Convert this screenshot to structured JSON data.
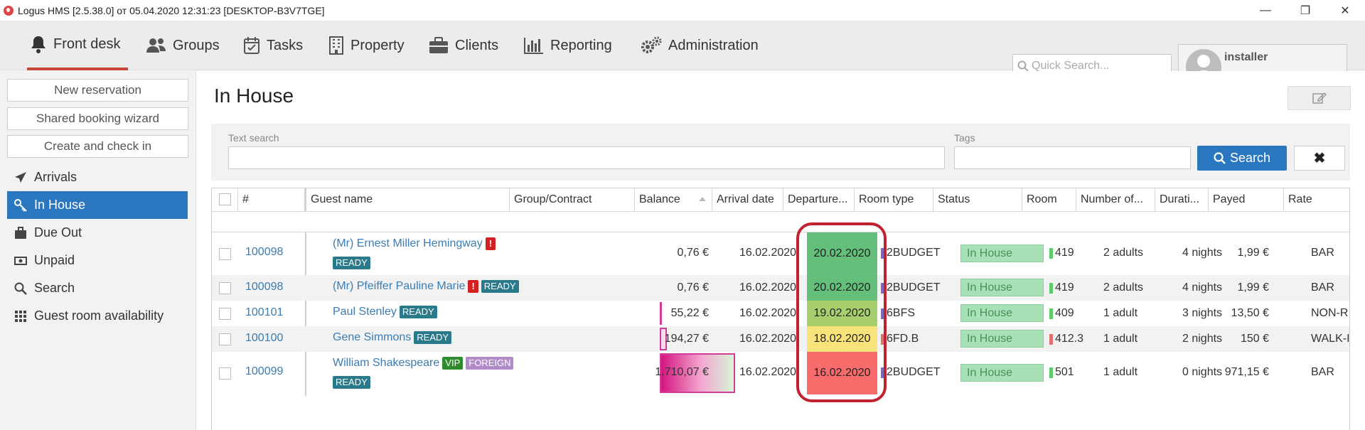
{
  "window": {
    "title": "Logus HMS [2.5.38.0] от 05.04.2020 12:31:23 [DESKTOP-B3V7TGE]",
    "min": "—",
    "max": "❐",
    "close": "✕"
  },
  "menu": {
    "items": [
      {
        "label": "Front desk"
      },
      {
        "label": "Groups"
      },
      {
        "label": "Tasks"
      },
      {
        "label": "Property"
      },
      {
        "label": "Clients"
      },
      {
        "label": "Reporting"
      },
      {
        "label": "Administration"
      }
    ],
    "active": "Front desk",
    "quick_search_placeholder": "Quick Search...",
    "user": "installer"
  },
  "sidebar": {
    "buttons": [
      {
        "label": "New reservation"
      },
      {
        "label": "Shared booking wizard"
      },
      {
        "label": "Create and check in"
      }
    ],
    "items": [
      {
        "label": "Arrivals",
        "icon": "plane-icon"
      },
      {
        "label": "In House",
        "icon": "key-icon"
      },
      {
        "label": "Due Out",
        "icon": "suitcase-icon"
      },
      {
        "label": "Unpaid",
        "icon": "money-icon"
      },
      {
        "label": "Search",
        "icon": "search-icon"
      },
      {
        "label": "Guest room availability",
        "icon": "grid-icon"
      }
    ],
    "active": "In House"
  },
  "page": {
    "title": "In House"
  },
  "filters": {
    "text_search_label": "Text search",
    "tags_label": "Tags",
    "search_button": "Search",
    "clear_button": "✖"
  },
  "grid": {
    "columns": [
      "#",
      "Guest name",
      "Group/Contract",
      "Balance",
      "Arrival date",
      "Departure...",
      "Room type",
      "Status",
      "Room",
      "Number of...",
      "Durati...",
      "Payed",
      "Rate"
    ],
    "rows": [
      {
        "num": "100098",
        "name": "(Mr) Ernest Miller Hemingway",
        "tags": [
          "!",
          "READY"
        ],
        "balance": "0,76 €",
        "arrival": "16.02.2020",
        "departure": "20.02.2020",
        "dep_color": "#63bf7a",
        "room_type": "2BUDGET",
        "rt_color": "#7b6bbf",
        "status": "In House",
        "room": "419",
        "room_color": "#5ccb6b",
        "guests": "2 adults",
        "duration": "4 nights",
        "payed": "1,99 €",
        "rate": "BAR"
      },
      {
        "num": "100098",
        "name": "(Mr) Pfeiffer Pauline Marie",
        "tags": [
          "!",
          "READY"
        ],
        "balance": "0,76 €",
        "arrival": "16.02.2020",
        "departure": "20.02.2020",
        "dep_color": "#63bf7a",
        "room_type": "2BUDGET",
        "rt_color": "#7b6bbf",
        "status": "In House",
        "room": "419",
        "room_color": "#5ccb6b",
        "guests": "2 adults",
        "duration": "4 nights",
        "payed": "1,99 €",
        "rate": "BAR"
      },
      {
        "num": "100101",
        "name": "Paul Stenley",
        "tags": [
          "READY"
        ],
        "balance": "55,22 €",
        "arrival": "16.02.2020",
        "departure": "19.02.2020",
        "dep_color": "#a8cf6d",
        "room_type": "6BFS",
        "rt_color": "#7b6bbf",
        "status": "In House",
        "room": "409",
        "room_color": "#5ccb6b",
        "guests": "1 adult",
        "duration": "3 nights",
        "payed": "13,50 €",
        "rate": "NON-R"
      },
      {
        "num": "100100",
        "name": "Gene Simmons",
        "tags": [
          "READY"
        ],
        "balance": "194,27 €",
        "arrival": "16.02.2020",
        "departure": "18.02.2020",
        "dep_color": "#f8e27a",
        "room_type": "6FD.B",
        "rt_color": "#e07070",
        "status": "In House",
        "room": "412.3",
        "room_color": "#e07070",
        "guests": "1 adult",
        "duration": "2 nights",
        "payed": "150 €",
        "rate": "WALK-I"
      },
      {
        "num": "100099",
        "name": "William Shakespeare",
        "tags": [
          "VIP",
          "FOREIGN",
          "READY"
        ],
        "balance": "1.710,07 €",
        "arrival": "16.02.2020",
        "departure": "16.02.2020",
        "dep_color": "#f86b6b",
        "room_type": "2BUDGET",
        "rt_color": "#7b6bbf",
        "status": "In House",
        "room": "501",
        "room_color": "#5ccb6b",
        "guests": "1 adult",
        "duration": "0 nights",
        "payed": "971,15 €",
        "rate": "BAR"
      }
    ]
  },
  "colors": {
    "accent": "#2a77c0",
    "active_tab_underline": "#c9453a",
    "highlight": "#c0232f",
    "status_bg": "#a9e1b6"
  }
}
